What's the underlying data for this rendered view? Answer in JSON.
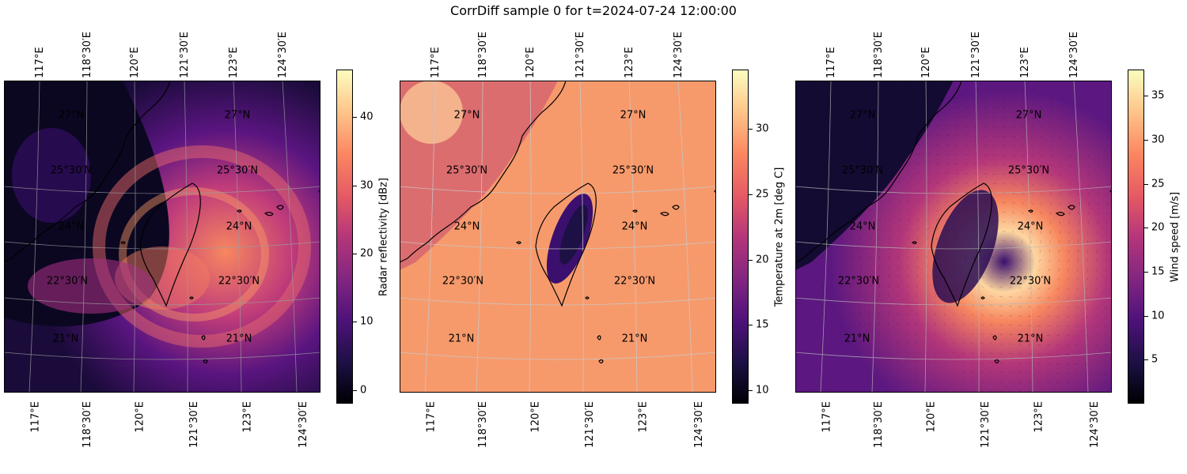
{
  "title": "CorrDiff sample 0 for t=2024-07-24 12:00:00",
  "lon_labels": [
    "117°E",
    "118°30′E",
    "120°E",
    "121°30′E",
    "123°E",
    "124°30′E"
  ],
  "lat_labels": [
    "27°N",
    "25°30′N",
    "24°N",
    "22°30′N",
    "21°N"
  ],
  "panels": [
    {
      "variable": "radar reflectivity",
      "colormap": "magma",
      "colorbar": {
        "label": "Radar reflectivity [dBz]",
        "min": -2,
        "max": 47,
        "ticks": [
          "0",
          "10",
          "20",
          "30",
          "40"
        ]
      }
    },
    {
      "variable": "2m temperature",
      "colormap": "magma",
      "colorbar": {
        "label": "Temperature at 2m [deg C]",
        "min": 9,
        "max": 34.5,
        "ticks": [
          "10",
          "15",
          "20",
          "25",
          "30"
        ]
      }
    },
    {
      "variable": "wind speed",
      "colormap": "magma",
      "vectors": "wind arrows",
      "colorbar": {
        "label": "Wind speed [m/s]",
        "min": 0,
        "max": 38,
        "ticks": [
          "5",
          "10",
          "15",
          "20",
          "25",
          "30",
          "35"
        ]
      }
    }
  ]
}
